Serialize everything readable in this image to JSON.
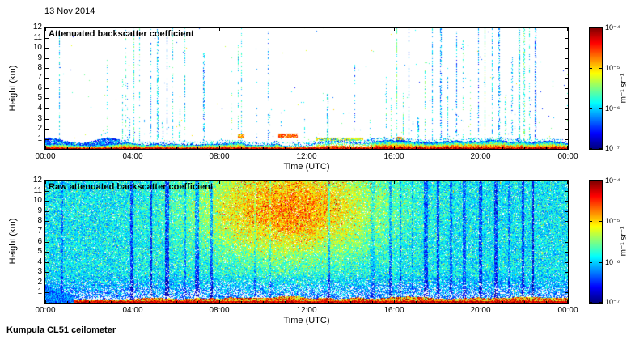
{
  "header": {
    "date": "13 Nov 2014"
  },
  "footer": {
    "instrument": "Kumpula CL51 ceilometer"
  },
  "chart_data": [
    {
      "type": "heatmap",
      "title": "Attenuated backscatter coefficient",
      "xlabel": "Time (UTC)",
      "ylabel": "Height (km)",
      "x_tick_labels": [
        "00:00",
        "04:00",
        "08:00",
        "12:00",
        "16:00",
        "20:00",
        "00:00"
      ],
      "x_tick_hours": [
        0,
        4,
        8,
        12,
        16,
        20,
        24
      ],
      "x_range_hours": [
        0,
        24
      ],
      "y_tick_labels": [
        "1",
        "2",
        "3",
        "4",
        "5",
        "6",
        "7",
        "8",
        "9",
        "10",
        "11",
        "12"
      ],
      "y_range_km": [
        0,
        12
      ],
      "grid": false,
      "colorbar": {
        "unit_label": "m⁻¹ sr⁻¹",
        "tick_labels": [
          "10⁻⁴",
          "10⁻⁵",
          "10⁻⁶",
          "10⁻⁷"
        ],
        "scale": "log",
        "min": 1e-07,
        "max": 0.0001,
        "colormap": "jet",
        "position": "right"
      },
      "content_summary": "Processed profile: mostly clear (white) free troposphere; shallow aerosol/boundary layer below ~0.8 km with strongest backscatter (red/orange) at the surface; weak blue plume below ~1 km from 00:00 to ~03:30; thin orange cloud/aerosol streaks near 1-1.5 km around 09:00, 10:45-11:30 and 12:30-14:30; intermittent narrow vertical blue-green streaks (precipitation/noise) up to 12 km, densest 04:00-06:30 and 15:40-22:30.",
      "render": {
        "seed": 1337,
        "extra_streaks": 22,
        "dot_prob": 0.0015,
        "streak_hours": [
          0.65,
          3.55,
          3.7,
          3.85,
          4.05,
          4.3,
          4.55,
          4.85,
          5.15,
          5.35,
          5.6,
          5.85,
          6.15,
          6.4,
          7.25,
          8.85,
          9.0,
          10.25,
          11.9,
          12.95,
          14.2,
          15.65,
          15.9,
          16.15,
          16.45,
          16.7,
          17.1,
          17.45,
          17.8,
          18.15,
          18.5,
          18.85,
          19.2,
          19.55,
          19.9,
          20.2,
          20.55,
          20.85,
          21.15,
          21.45,
          21.75,
          22.0,
          22.25,
          22.5
        ],
        "surface_layer": {
          "min_top_km": 0.3,
          "max_top_km": 0.85
        },
        "morning_blob": {
          "t0": 0,
          "t1": 3.4,
          "top_km": 1.05
        },
        "clouds": [
          {
            "t0": 10.7,
            "t1": 11.6,
            "h0": 1.05,
            "h1": 1.45,
            "v": 0.78
          },
          {
            "t0": 12.4,
            "t1": 14.6,
            "h0": 0.78,
            "h1": 1.12,
            "v": 0.6
          },
          {
            "t0": 8.82,
            "t1": 9.15,
            "h0": 1.0,
            "h1": 1.4,
            "v": 0.72
          },
          {
            "t0": 16.1,
            "t1": 16.5,
            "h0": 0.85,
            "h1": 1.15,
            "v": 0.7
          }
        ]
      }
    },
    {
      "type": "heatmap",
      "title": "Raw attenuated backscatter coefficient",
      "xlabel": "Time (UTC)",
      "ylabel": "Height (km)",
      "x_tick_labels": [
        "00:00",
        "04:00",
        "08:00",
        "12:00",
        "16:00",
        "20:00",
        "00:00"
      ],
      "x_tick_hours": [
        0,
        4,
        8,
        12,
        16,
        20,
        24
      ],
      "x_range_hours": [
        0,
        24
      ],
      "y_tick_labels": [
        "1",
        "2",
        "3",
        "4",
        "5",
        "6",
        "7",
        "8",
        "9",
        "10",
        "11",
        "12"
      ],
      "y_range_km": [
        0,
        12
      ],
      "grid": false,
      "colorbar": {
        "unit_label": "m⁻¹ sr⁻¹",
        "tick_labels": [
          "10⁻⁴",
          "10⁻⁵",
          "10⁻⁶",
          "10⁻⁷"
        ],
        "scale": "log",
        "min": 1e-07,
        "max": 0.0001,
        "colormap": "jet",
        "position": "right"
      },
      "content_summary": "Raw (unfiltered) signal: noisy green-cyan speckle across the full 0-12 km column; brighter yellow-orange region centred near 11:00 UTC between ~6 and 12 km; whiter low-signal air below ~2.5 km with blue speckle; strong multicoloured surface layer below ~0.5 km; dense blue mass near 00:00 below ~1.5 km; scattered darker blue vertical stripes.",
      "render": {
        "seed": 77,
        "base_v": 0.36,
        "base_jitter": 0.26,
        "white_speckle": 0.045,
        "clear_gap_top_km": 2.4,
        "plume": {
          "t_hr": 11.2,
          "h_km": 9.2,
          "sigma_t": 2.9,
          "sigma_h": 3.4,
          "amp": 0.38
        },
        "surface_layer": {
          "min_top_km": 0.25,
          "max_top_km": 0.6
        },
        "left_blob": {
          "t1": 1.3,
          "top_km": 1.7
        },
        "streak_hours": [
          0.7,
          3.9,
          4.85,
          5.5,
          6.4,
          6.9,
          7.6,
          9.6,
          10.3,
          13.0,
          14.95,
          15.8,
          16.3,
          16.85,
          17.4,
          18.0,
          18.6,
          19.2,
          19.95,
          20.65,
          21.3,
          21.9,
          22.4
        ]
      }
    }
  ]
}
